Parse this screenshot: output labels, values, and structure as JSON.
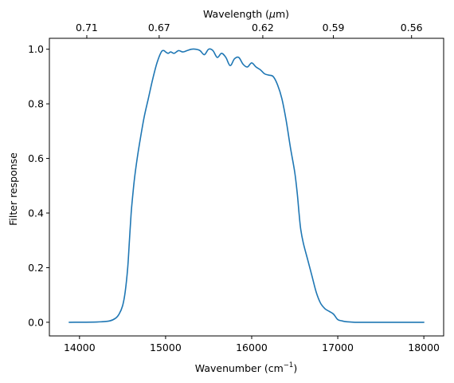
{
  "chart_data": {
    "type": "line",
    "xlabel": {
      "prefix": "Wavenumber (cm",
      "sup": "−1",
      "suffix": ")"
    },
    "ylabel": "Filter response",
    "top_xlabel": {
      "prefix": "Wavelength (",
      "mu": "μ",
      "suffix": "m)"
    },
    "xlim": [
      13650,
      18230
    ],
    "ylim": [
      -0.05,
      1.04
    ],
    "x_ticks": [
      14000,
      15000,
      16000,
      17000,
      18000
    ],
    "x_tick_labels": [
      "14000",
      "15000",
      "16000",
      "17000",
      "18000"
    ],
    "y_ticks": [
      0.0,
      0.2,
      0.4,
      0.6,
      0.8,
      1.0
    ],
    "y_tick_labels": [
      "0.0",
      "0.2",
      "0.4",
      "0.6",
      "0.8",
      "1.0"
    ],
    "top_ticks_um": [
      0.71,
      0.67,
      0.62,
      0.59,
      0.56
    ],
    "top_tick_labels": [
      "0.71",
      "0.67",
      "0.62",
      "0.59",
      "0.56"
    ],
    "line_color": "#1f77b4",
    "grid": false,
    "series": [
      {
        "x": [
          13880,
          14200,
          14350,
          14420,
          14460,
          14500,
          14530,
          14560,
          14580,
          14600,
          14620,
          14640,
          14670,
          14700,
          14750,
          14800,
          14850,
          14900,
          14950,
          14980,
          15000,
          15030,
          15060,
          15100,
          15150,
          15200,
          15250,
          15300,
          15350,
          15400,
          15450,
          15500,
          15550,
          15600,
          15650,
          15700,
          15750,
          15800,
          15850,
          15900,
          15950,
          16000,
          16050,
          16100,
          16150,
          16200,
          16250,
          16300,
          16350,
          16400,
          16450,
          16500,
          16530,
          16550,
          16570,
          16600,
          16650,
          16700,
          16750,
          16800,
          16850,
          16900,
          16950,
          17000,
          17050,
          17100,
          17150,
          17200,
          17300,
          17500,
          18000
        ],
        "y": [
          0.0,
          0.001,
          0.005,
          0.015,
          0.03,
          0.06,
          0.11,
          0.2,
          0.3,
          0.4,
          0.47,
          0.53,
          0.6,
          0.66,
          0.75,
          0.82,
          0.89,
          0.95,
          0.99,
          0.995,
          0.99,
          0.985,
          0.99,
          0.985,
          0.995,
          0.99,
          0.995,
          1.0,
          1.0,
          0.995,
          0.98,
          1.0,
          0.995,
          0.97,
          0.985,
          0.97,
          0.94,
          0.965,
          0.97,
          0.945,
          0.935,
          0.95,
          0.935,
          0.925,
          0.91,
          0.905,
          0.9,
          0.87,
          0.82,
          0.74,
          0.64,
          0.55,
          0.47,
          0.4,
          0.34,
          0.29,
          0.23,
          0.17,
          0.11,
          0.07,
          0.05,
          0.04,
          0.03,
          0.01,
          0.005,
          0.002,
          0.001,
          0.0,
          0.0,
          0.0,
          0.0
        ]
      }
    ]
  }
}
